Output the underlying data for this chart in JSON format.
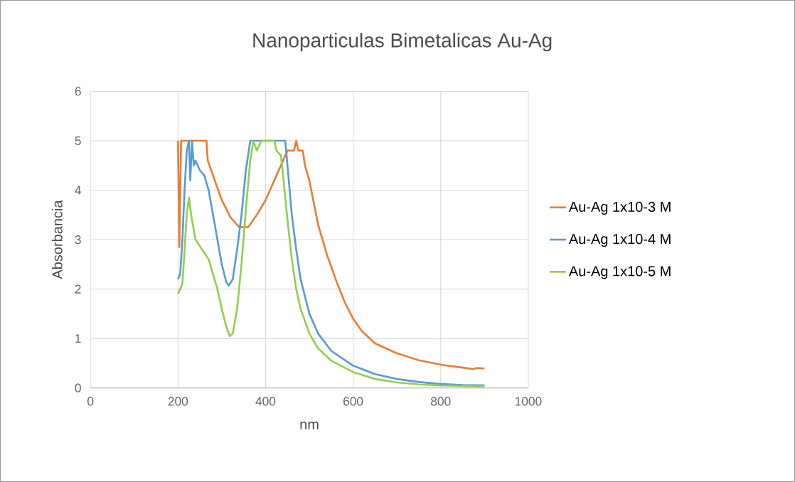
{
  "chart_data": {
    "type": "line",
    "title": "Nanoparticulas Bimetalicas Au-Ag",
    "xlabel": "nm",
    "ylabel": "Absorbancia",
    "xlim": [
      0,
      1000
    ],
    "xticks": [
      0,
      200,
      400,
      600,
      800,
      1000
    ],
    "ylim": [
      0,
      6
    ],
    "yticks": [
      0,
      1,
      2,
      3,
      4,
      5,
      6
    ],
    "grid": true,
    "legend": "right",
    "series": [
      {
        "name": "Au-Ag 1x10-3 M",
        "color": "#ed7d31",
        "x": [
          200,
          203,
          207,
          230,
          265,
          268,
          280,
          300,
          320,
          340,
          360,
          380,
          400,
          420,
          440,
          450,
          465,
          470,
          475,
          485,
          490,
          500,
          520,
          540,
          560,
          580,
          600,
          620,
          650,
          700,
          750,
          800,
          850,
          875,
          880,
          890,
          900
        ],
        "values": [
          5.0,
          2.85,
          5.0,
          5.0,
          5.0,
          4.6,
          4.3,
          3.8,
          3.45,
          3.25,
          3.25,
          3.5,
          3.8,
          4.2,
          4.6,
          4.8,
          4.8,
          5.0,
          4.8,
          4.8,
          4.5,
          4.2,
          3.3,
          2.7,
          2.2,
          1.75,
          1.4,
          1.15,
          0.9,
          0.7,
          0.56,
          0.47,
          0.41,
          0.38,
          0.4,
          0.4,
          0.39
        ]
      },
      {
        "name": "Au-Ag 1x10-4 M",
        "color": "#5b9bd5",
        "x": [
          200,
          205,
          210,
          215,
          220,
          225,
          228,
          232,
          236,
          240,
          250,
          260,
          270,
          280,
          290,
          300,
          310,
          316,
          325,
          335,
          345,
          355,
          365,
          430,
          445,
          450,
          460,
          470,
          480,
          500,
          520,
          550,
          600,
          650,
          700,
          750,
          800,
          850,
          900
        ],
        "values": [
          2.2,
          2.3,
          3.0,
          4.0,
          4.8,
          5.0,
          4.2,
          5.0,
          4.5,
          4.6,
          4.4,
          4.3,
          4.0,
          3.5,
          3.0,
          2.5,
          2.15,
          2.07,
          2.2,
          2.8,
          3.5,
          4.4,
          5.0,
          5.0,
          5.0,
          4.5,
          3.5,
          2.8,
          2.2,
          1.5,
          1.1,
          0.75,
          0.45,
          0.28,
          0.18,
          0.12,
          0.08,
          0.06,
          0.05
        ]
      },
      {
        "name": "Au-Ag 1x10-5 M",
        "color": "#92d050",
        "x": [
          200,
          205,
          210,
          215,
          220,
          225,
          230,
          240,
          255,
          270,
          290,
          300,
          310,
          318,
          325,
          335,
          345,
          355,
          365,
          372,
          380,
          390,
          420,
          425,
          435,
          440,
          450,
          460,
          470,
          480,
          500,
          520,
          550,
          600,
          650,
          700,
          750,
          800,
          900
        ],
        "values": [
          1.9,
          2.0,
          2.1,
          2.8,
          3.5,
          3.85,
          3.5,
          3.0,
          2.8,
          2.6,
          2.0,
          1.6,
          1.25,
          1.05,
          1.1,
          1.6,
          2.5,
          3.6,
          4.6,
          5.0,
          4.8,
          5.0,
          5.0,
          4.8,
          4.7,
          4.3,
          3.4,
          2.6,
          2.0,
          1.6,
          1.1,
          0.8,
          0.55,
          0.32,
          0.18,
          0.11,
          0.07,
          0.05,
          0.03
        ]
      }
    ]
  }
}
